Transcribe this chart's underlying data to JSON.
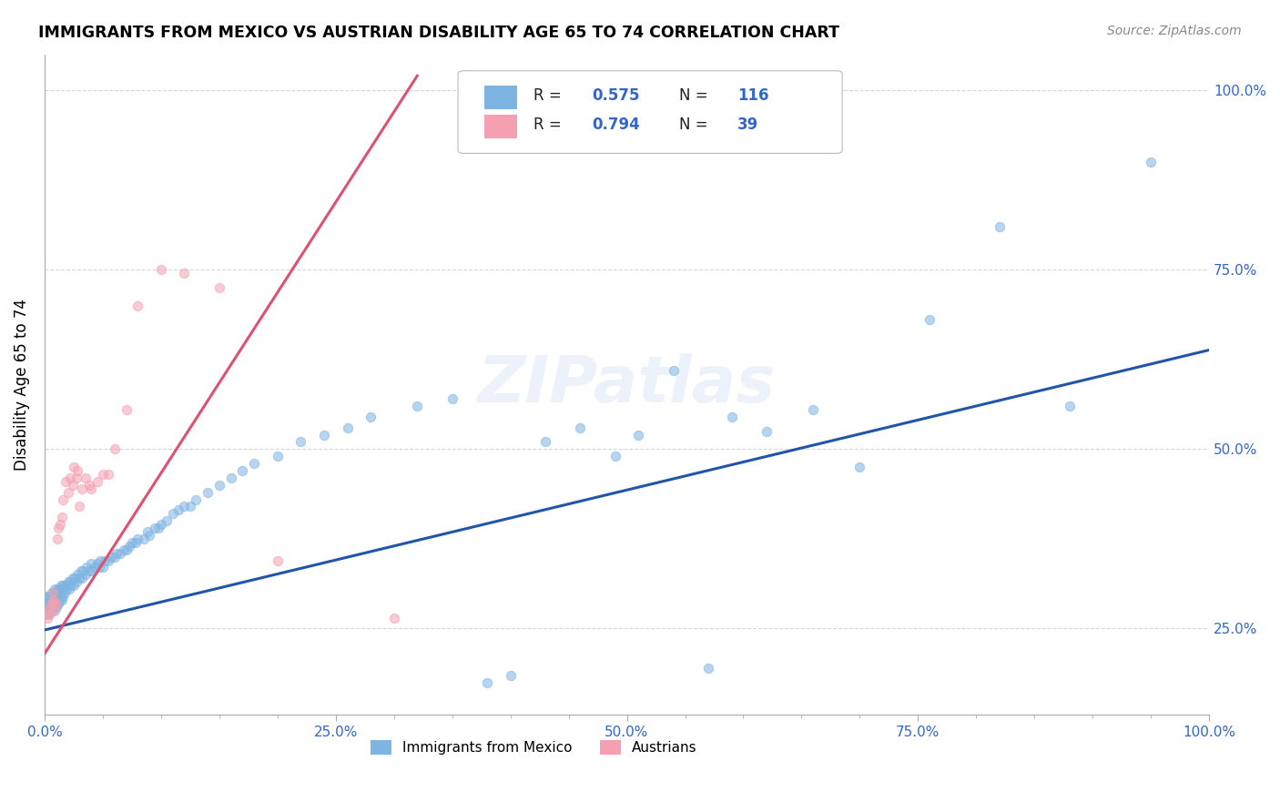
{
  "title": "IMMIGRANTS FROM MEXICO VS AUSTRIAN DISABILITY AGE 65 TO 74 CORRELATION CHART",
  "source": "Source: ZipAtlas.com",
  "ylabel": "Disability Age 65 to 74",
  "xlim": [
    0,
    1.0
  ],
  "ylim": [
    0.13,
    1.05
  ],
  "xtick_labels": [
    "0.0%",
    "",
    "",
    "",
    "",
    "25.0%",
    "",
    "",
    "",
    "",
    "50.0%",
    "",
    "",
    "",
    "",
    "75.0%",
    "",
    "",
    "",
    "",
    "100.0%"
  ],
  "xtick_vals": [
    0.0,
    0.05,
    0.1,
    0.15,
    0.2,
    0.25,
    0.3,
    0.35,
    0.4,
    0.45,
    0.5,
    0.55,
    0.6,
    0.65,
    0.7,
    0.75,
    0.8,
    0.85,
    0.9,
    0.95,
    1.0
  ],
  "ytick_labels": [
    "25.0%",
    "50.0%",
    "75.0%",
    "100.0%"
  ],
  "ytick_vals": [
    0.25,
    0.5,
    0.75,
    1.0
  ],
  "legend_label_blue": "Immigrants from Mexico",
  "legend_label_pink": "Austrians",
  "R_blue": 0.575,
  "N_blue": 116,
  "R_pink": 0.794,
  "N_pink": 39,
  "blue_color": "#7EB4E2",
  "pink_color": "#F4A0B0",
  "blue_line_color": "#2255AA",
  "pink_line_color": "#E05070",
  "text_color_blue": "#3366CC",
  "watermark": "ZIPatlas",
  "blue_scatter_x": [
    0.001,
    0.002,
    0.002,
    0.003,
    0.003,
    0.004,
    0.004,
    0.005,
    0.005,
    0.005,
    0.006,
    0.006,
    0.006,
    0.007,
    0.007,
    0.007,
    0.008,
    0.008,
    0.008,
    0.009,
    0.009,
    0.009,
    0.01,
    0.01,
    0.01,
    0.011,
    0.011,
    0.011,
    0.012,
    0.012,
    0.013,
    0.013,
    0.014,
    0.014,
    0.015,
    0.015,
    0.016,
    0.016,
    0.017,
    0.018,
    0.019,
    0.02,
    0.021,
    0.022,
    0.023,
    0.024,
    0.025,
    0.026,
    0.027,
    0.028,
    0.03,
    0.031,
    0.032,
    0.033,
    0.035,
    0.036,
    0.038,
    0.04,
    0.041,
    0.043,
    0.045,
    0.047,
    0.048,
    0.05,
    0.052,
    0.055,
    0.057,
    0.06,
    0.062,
    0.065,
    0.068,
    0.07,
    0.073,
    0.075,
    0.078,
    0.08,
    0.085,
    0.088,
    0.09,
    0.095,
    0.098,
    0.1,
    0.105,
    0.11,
    0.115,
    0.12,
    0.125,
    0.13,
    0.14,
    0.15,
    0.16,
    0.17,
    0.18,
    0.2,
    0.22,
    0.24,
    0.26,
    0.28,
    0.32,
    0.35,
    0.38,
    0.4,
    0.43,
    0.46,
    0.49,
    0.51,
    0.54,
    0.57,
    0.59,
    0.62,
    0.66,
    0.7,
    0.76,
    0.82,
    0.88,
    0.95
  ],
  "blue_scatter_y": [
    0.285,
    0.275,
    0.295,
    0.27,
    0.285,
    0.28,
    0.295,
    0.275,
    0.285,
    0.295,
    0.28,
    0.29,
    0.3,
    0.275,
    0.285,
    0.295,
    0.28,
    0.29,
    0.3,
    0.285,
    0.295,
    0.305,
    0.28,
    0.29,
    0.3,
    0.285,
    0.295,
    0.305,
    0.285,
    0.3,
    0.29,
    0.305,
    0.295,
    0.31,
    0.29,
    0.305,
    0.295,
    0.31,
    0.3,
    0.31,
    0.305,
    0.315,
    0.305,
    0.315,
    0.31,
    0.32,
    0.31,
    0.32,
    0.315,
    0.325,
    0.32,
    0.33,
    0.32,
    0.33,
    0.325,
    0.335,
    0.33,
    0.34,
    0.33,
    0.335,
    0.34,
    0.335,
    0.345,
    0.335,
    0.345,
    0.345,
    0.35,
    0.35,
    0.355,
    0.355,
    0.36,
    0.36,
    0.365,
    0.37,
    0.37,
    0.375,
    0.375,
    0.385,
    0.38,
    0.39,
    0.39,
    0.395,
    0.4,
    0.41,
    0.415,
    0.42,
    0.42,
    0.43,
    0.44,
    0.45,
    0.46,
    0.47,
    0.48,
    0.49,
    0.51,
    0.52,
    0.53,
    0.545,
    0.56,
    0.57,
    0.175,
    0.185,
    0.51,
    0.53,
    0.49,
    0.52,
    0.61,
    0.195,
    0.545,
    0.525,
    0.555,
    0.475,
    0.68,
    0.81,
    0.56,
    0.9
  ],
  "pink_scatter_x": [
    0.001,
    0.002,
    0.003,
    0.004,
    0.005,
    0.006,
    0.007,
    0.007,
    0.008,
    0.009,
    0.01,
    0.011,
    0.012,
    0.013,
    0.015,
    0.016,
    0.018,
    0.02,
    0.022,
    0.024,
    0.025,
    0.027,
    0.028,
    0.03,
    0.032,
    0.035,
    0.038,
    0.04,
    0.045,
    0.05,
    0.055,
    0.06,
    0.07,
    0.08,
    0.1,
    0.12,
    0.15,
    0.2,
    0.3
  ],
  "pink_scatter_y": [
    0.27,
    0.265,
    0.275,
    0.27,
    0.28,
    0.285,
    0.29,
    0.3,
    0.285,
    0.275,
    0.285,
    0.375,
    0.39,
    0.395,
    0.405,
    0.43,
    0.455,
    0.44,
    0.46,
    0.45,
    0.475,
    0.46,
    0.47,
    0.42,
    0.445,
    0.46,
    0.45,
    0.445,
    0.455,
    0.465,
    0.465,
    0.5,
    0.555,
    0.7,
    0.75,
    0.745,
    0.725,
    0.345,
    0.265
  ],
  "blue_trendline_x": [
    0.0,
    1.0
  ],
  "blue_trendline_y": [
    0.248,
    0.638
  ],
  "pink_trendline_x": [
    0.0,
    0.32
  ],
  "pink_trendline_y": [
    0.215,
    1.02
  ]
}
